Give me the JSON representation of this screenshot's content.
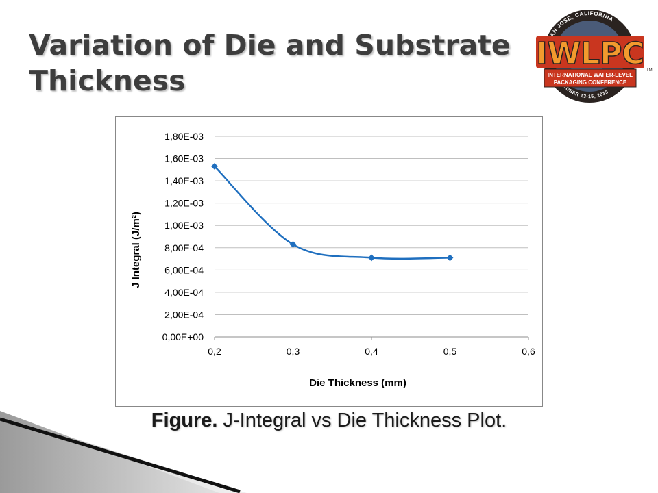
{
  "slide": {
    "title": "Variation of Die and Substrate Thickness",
    "caption_bold": "Figure.",
    "caption_rest": " J-Integral vs Die Thickness Plot."
  },
  "logo": {
    "top_text": "SAN JOSE, CALIFORNIA",
    "main_text": "IWLPC",
    "banner_line1": "INTERNATIONAL WAFER-LEVEL",
    "banner_line2": "PACKAGING CONFERENCE",
    "date_text": "OCTOBER 13-15, 2015",
    "tm": "TM"
  },
  "colors": {
    "title": "#3d3d3d",
    "series": "#1f6fbf",
    "grid": "#bfbfbf",
    "logo_orange": "#f29a2e",
    "logo_red": "#c9361f",
    "logo_dark": "#2a2320"
  },
  "chart_data": {
    "type": "line",
    "xlabel": "Die Thickness (mm)",
    "ylabel": "J Integral (J/m²)",
    "xlim": [
      0.2,
      0.6
    ],
    "ylim": [
      0,
      0.0018
    ],
    "x_ticks": [
      "0,2",
      "0,3",
      "0,4",
      "0,5",
      "0,6"
    ],
    "y_ticks": [
      "0,00E+00",
      "2,00E-04",
      "4,00E-04",
      "6,00E-04",
      "8,00E-04",
      "1,00E-03",
      "1,20E-03",
      "1,40E-03",
      "1,60E-03",
      "1,80E-03"
    ],
    "grid": "horizontal",
    "legend": "none",
    "series": [
      {
        "x": [
          0.2,
          0.3,
          0.4,
          0.5
        ],
        "y": [
          0.00153,
          0.00083,
          0.00071,
          0.00071
        ]
      }
    ]
  }
}
